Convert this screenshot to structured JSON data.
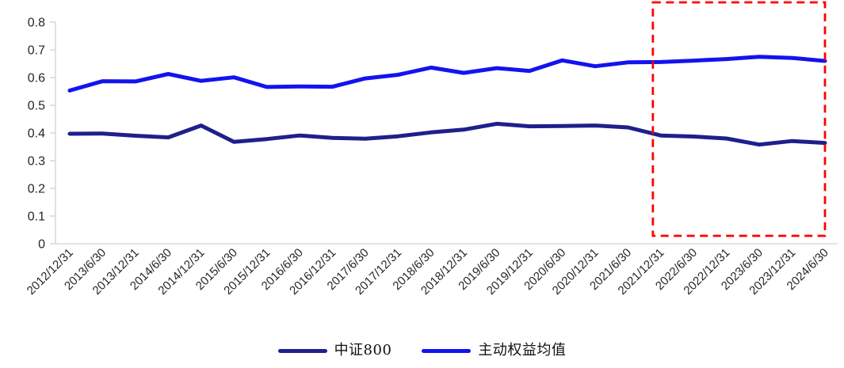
{
  "chart_data": {
    "type": "line",
    "title": "",
    "xlabel": "",
    "ylabel": "",
    "categories": [
      "2012/12/31",
      "2013/6/30",
      "2013/12/31",
      "2014/6/30",
      "2014/12/31",
      "2015/6/30",
      "2015/12/31",
      "2016/6/30",
      "2016/12/31",
      "2017/6/30",
      "2017/12/31",
      "2018/6/30",
      "2018/12/31",
      "2019/6/30",
      "2019/12/31",
      "2020/6/30",
      "2020/12/31",
      "2021/6/30",
      "2021/12/31",
      "2022/6/30",
      "2022/12/31",
      "2023/6/30",
      "2023/12/31",
      "2024/6/30"
    ],
    "series": [
      {
        "name": "中证800",
        "color": "#1F1F8C",
        "values": [
          0.397,
          0.398,
          0.39,
          0.384,
          0.427,
          0.368,
          0.378,
          0.391,
          0.382,
          0.379,
          0.388,
          0.402,
          0.412,
          0.433,
          0.424,
          0.425,
          0.427,
          0.42,
          0.391,
          0.387,
          0.38,
          0.358,
          0.371,
          0.364
        ]
      },
      {
        "name": "主动权益均值",
        "color": "#1313F0",
        "values": [
          0.553,
          0.587,
          0.586,
          0.613,
          0.588,
          0.601,
          0.566,
          0.568,
          0.567,
          0.597,
          0.61,
          0.636,
          0.617,
          0.634,
          0.624,
          0.662,
          0.641,
          0.655,
          0.656,
          0.661,
          0.667,
          0.675,
          0.671,
          0.66
        ]
      }
    ],
    "ylim": [
      0,
      0.8
    ],
    "ytick_step": 0.1,
    "ytick_labels": [
      "0",
      "0.1",
      "0.2",
      "0.3",
      "0.4",
      "0.5",
      "0.6",
      "0.7",
      "0.8"
    ],
    "grid": false,
    "legend_position": "bottom",
    "annotation": {
      "type": "dashed-box",
      "color": "#FF0000",
      "from_category": "2021/12/31",
      "to_category": "2024/6/30"
    },
    "axis_color": "#D9D9D9",
    "tick_label_color": "#262626"
  }
}
